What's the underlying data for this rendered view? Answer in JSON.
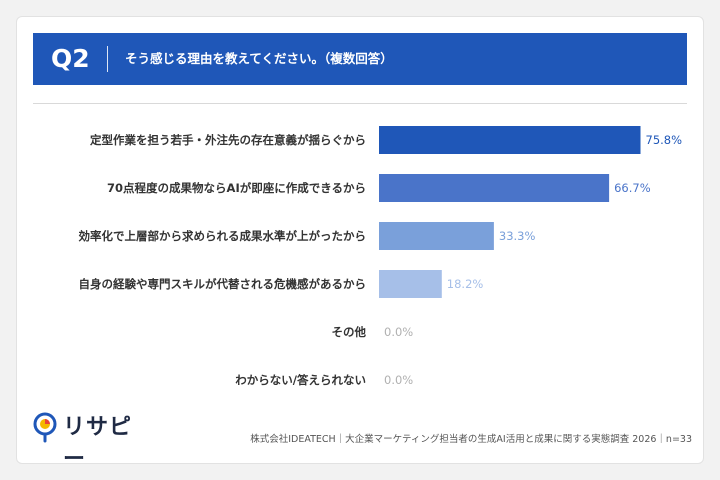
{
  "header": {
    "question_number": "Q2",
    "question_text": "そう感じる理由を教えてください。（複数回答）"
  },
  "chart_data": {
    "type": "bar",
    "orientation": "horizontal",
    "categories": [
      "定型作業を担う若手・外注先の存在意義が揺らぐから",
      "70点程度の成果物ならAIが即座に作成できるから",
      "効率化で上層部から求められる成果水準が上がったから",
      "自身の経験や専門スキルが代替される危機感があるから",
      "その他",
      "わからない/答えられない"
    ],
    "values": [
      75.8,
      66.7,
      33.3,
      18.2,
      0.0,
      0.0
    ],
    "value_labels": [
      "75.8%",
      "66.7%",
      "33.3%",
      "18.2%",
      "0.0%",
      "0.0%"
    ],
    "xlim": [
      0,
      100
    ],
    "bar_colors": [
      "#1f57b8",
      "#4a74c9",
      "#7aa0da",
      "#a6bfe8",
      "#c9d8f2",
      "#c9d8f2"
    ],
    "label_colors": [
      "#1f57b8",
      "#4a74c9",
      "#7aa0da",
      "#a6bfe8",
      "#b0b0b0",
      "#b0b0b0"
    ],
    "grid": false,
    "legend": "none"
  },
  "footer": {
    "source": "株式会社IDEATECH｜大企業マーケティング担当者の生成AI活用と成果に関する実態調査 2026｜n=33"
  },
  "logo": {
    "text": "リサピー",
    "icon": "lightbulb-icon"
  }
}
